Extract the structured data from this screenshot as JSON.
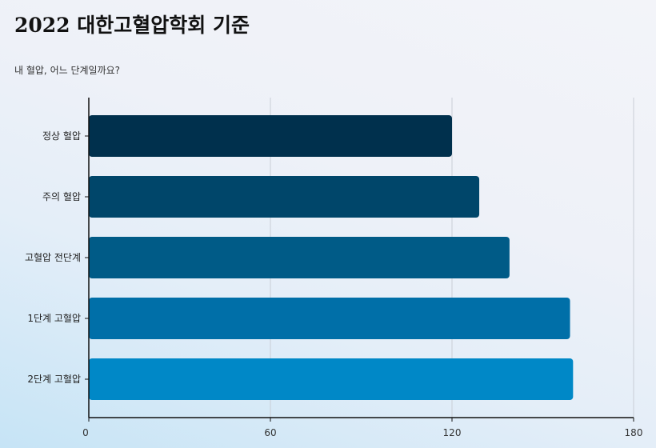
{
  "chart_data": {
    "type": "bar",
    "orientation": "horizontal",
    "title": "2022 대한고혈압학회 기준",
    "subtitle": "내 혈압, 어느 단계일까요?",
    "categories": [
      "정상 혈압",
      "주의 혈압",
      "고혈압 전단계",
      "1단계 고혈압",
      "2단계 고혈압"
    ],
    "values": [
      120,
      129,
      139,
      159,
      160
    ],
    "colors": [
      "#00304d",
      "#00466a",
      "#005b87",
      "#006fa8",
      "#0088c7"
    ],
    "xlim": [
      0,
      180
    ],
    "xticks": [
      0,
      60,
      120,
      180
    ],
    "xlabel": "",
    "ylabel": "",
    "grid": "vertical"
  }
}
